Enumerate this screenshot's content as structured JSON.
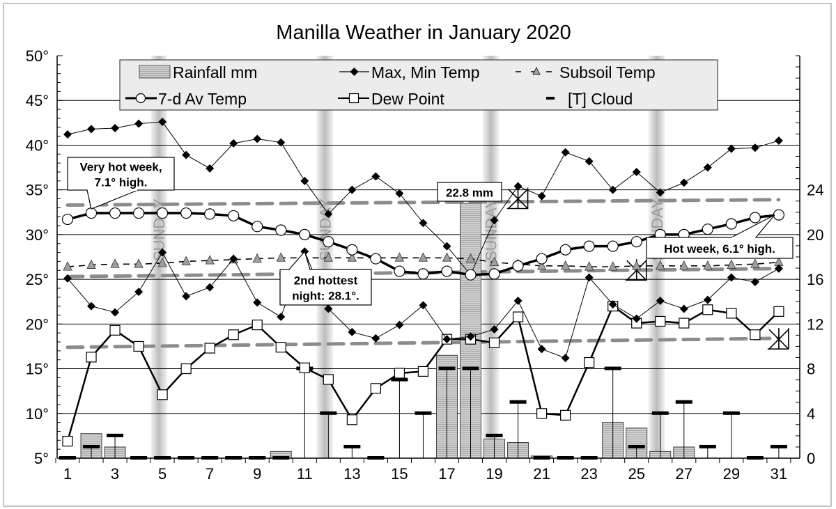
{
  "chart_data": {
    "type": "line",
    "title": "Manilla Weather in January 2020",
    "x": [
      1,
      2,
      3,
      4,
      5,
      6,
      7,
      8,
      9,
      10,
      11,
      12,
      13,
      14,
      15,
      16,
      17,
      18,
      19,
      20,
      21,
      22,
      23,
      24,
      25,
      26,
      27,
      28,
      29,
      30,
      31
    ],
    "x_tick_labels": [
      "1",
      "3",
      "5",
      "7",
      "9",
      "11",
      "13",
      "15",
      "17",
      "19",
      "21",
      "23",
      "25",
      "27",
      "29",
      "31"
    ],
    "y_left": {
      "range": [
        5,
        50
      ],
      "tick_labels": [
        "50°",
        "45°",
        "40°",
        "35°",
        "30°",
        "25°",
        "20°",
        "15°",
        "10°",
        "5°"
      ]
    },
    "y_right": {
      "range": [
        0,
        36
      ],
      "tick_labels": [
        "24",
        "20",
        "16",
        "12",
        "8",
        "4",
        "0"
      ]
    },
    "grid": true,
    "legend": "top",
    "sunday_label": "SUNDAY",
    "sundays": [
      5,
      12,
      19,
      26
    ],
    "series": [
      {
        "name": "Rainfall mm",
        "axis": "right",
        "type": "bar",
        "values": [
          0,
          2.2,
          1.0,
          0,
          0,
          0,
          0,
          0,
          0,
          0.6,
          0,
          0,
          0,
          0,
          0,
          0,
          9.2,
          22.8,
          1.7,
          1.4,
          0.2,
          0,
          0,
          3.2,
          2.7,
          0.6,
          1.0,
          0,
          0,
          0,
          0
        ]
      },
      {
        "name": "Max, Min Temp",
        "part": "max",
        "type": "line",
        "marker": "diamond",
        "values": [
          41.2,
          41.8,
          41.9,
          42.4,
          42.6,
          38.9,
          37.4,
          40.2,
          40.7,
          40.3,
          36.0,
          32.3,
          35.0,
          36.5,
          34.6,
          31.3,
          28.7,
          25.5,
          31.6,
          35.4,
          34.3,
          39.2,
          38.2,
          35.0,
          37.0,
          34.7,
          35.8,
          37.5,
          39.6,
          39.7,
          40.5
        ]
      },
      {
        "name": "Max, Min Temp",
        "part": "min",
        "type": "line",
        "marker": "diamond",
        "values": [
          25.1,
          22.0,
          21.3,
          23.6,
          28.0,
          23.1,
          24.1,
          27.3,
          22.4,
          20.8,
          28.1,
          21.7,
          19.1,
          18.4,
          19.9,
          22.1,
          18.3,
          18.6,
          19.4,
          22.6,
          17.2,
          16.2,
          25.2,
          22.2,
          20.6,
          22.6,
          21.7,
          22.7,
          25.2,
          24.7,
          26.2
        ]
      },
      {
        "name": "Subsoil Temp",
        "type": "line",
        "marker": "triangle",
        "dashed": true,
        "values": [
          26.4,
          26.6,
          26.7,
          26.7,
          26.8,
          27.0,
          27.1,
          27.2,
          27.3,
          27.4,
          27.4,
          27.4,
          27.4,
          27.4,
          27.4,
          27.4,
          27.4,
          27.3,
          26.9,
          26.7,
          26.5,
          26.5,
          26.4,
          26.4,
          26.5,
          26.5,
          26.5,
          26.5,
          26.6,
          26.7,
          26.9
        ]
      },
      {
        "name": "7-d Av Temp",
        "type": "line",
        "marker": "circle",
        "values": [
          31.7,
          32.4,
          32.4,
          32.4,
          32.4,
          32.4,
          32.3,
          32.1,
          30.9,
          30.5,
          30.0,
          29.2,
          28.3,
          27.3,
          25.9,
          25.6,
          25.9,
          25.5,
          25.6,
          26.5,
          27.3,
          28.3,
          28.7,
          28.7,
          29.2,
          30.0,
          30.0,
          30.6,
          31.2,
          31.9,
          32.2
        ]
      },
      {
        "name": "Dew Point",
        "type": "line",
        "marker": "square",
        "values": [
          6.9,
          16.3,
          19.3,
          17.5,
          12.1,
          15.0,
          17.3,
          18.8,
          19.9,
          17.4,
          15.1,
          13.8,
          9.3,
          12.8,
          14.5,
          14.7,
          18.3,
          18.3,
          17.9,
          20.8,
          10.0,
          9.8,
          15.7,
          22.0,
          20.1,
          20.3,
          20.1,
          21.6,
          21.2,
          18.8,
          21.4
        ]
      },
      {
        "name": "[T] Cloud",
        "axis": "right",
        "type": "cloud",
        "values": [
          0,
          1,
          2,
          0,
          0,
          0,
          0,
          0,
          0,
          0,
          8,
          4,
          1,
          0,
          7,
          4,
          8,
          8,
          2,
          5,
          0,
          0,
          0,
          8,
          1,
          4,
          5,
          1,
          4,
          0,
          1
        ]
      }
    ],
    "reference_lines": [
      {
        "from": [
          1,
          33.3
        ],
        "to": [
          31,
          33.9
        ]
      },
      {
        "from": [
          1,
          25.3
        ],
        "to": [
          31,
          26.2
        ]
      },
      {
        "from": [
          1,
          17.4
        ],
        "to": [
          31,
          18.4
        ]
      }
    ],
    "reference_markers": [
      [
        20,
        34.0
      ],
      [
        25,
        26.0
      ],
      [
        31,
        18.3
      ]
    ],
    "annotations": [
      {
        "text_lines": [
          "Very hot week,",
          "7.1° high."
        ],
        "day": 2,
        "value": 32.4
      },
      {
        "text_lines": [
          "2nd hottest",
          "night: 28.1°."
        ],
        "day": 11,
        "value": 28.1
      },
      {
        "text_lines": [
          "22.8 mm"
        ],
        "day": 18,
        "value": 22.8
      },
      {
        "text_lines": [
          "Hot week, 6.1° high."
        ],
        "day": 31,
        "value": 32.2
      }
    ],
    "colors": {
      "bar": "#c8c8c8",
      "reference": "#8c8c8c",
      "subsoil_marker": "#a0a0a0",
      "legend_bg": "#ececec",
      "sunday_band": "#c0c0c0"
    }
  }
}
